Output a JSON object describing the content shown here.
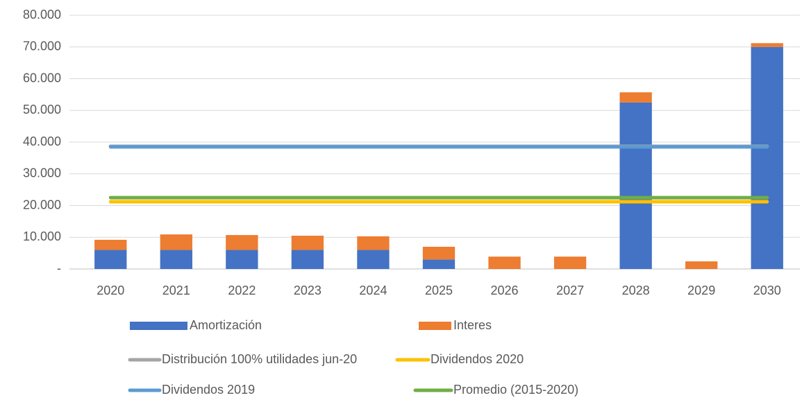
{
  "chart_data": {
    "type": "combo",
    "categories": [
      "2020",
      "2021",
      "2022",
      "2023",
      "2024",
      "2025",
      "2026",
      "2027",
      "2028",
      "2029",
      "2030"
    ],
    "series": [
      {
        "name": "Amortización",
        "type": "bar",
        "color": "#4472c4",
        "values": [
          6000,
          6000,
          6000,
          6000,
          6000,
          3000,
          0,
          0,
          52500,
          0,
          70000
        ]
      },
      {
        "name": "Interes",
        "type": "bar",
        "color": "#ed7d31",
        "values": [
          3200,
          4900,
          4700,
          4500,
          4300,
          4000,
          3900,
          3900,
          3200,
          2400,
          1200
        ]
      },
      {
        "name": "Distribución 100% utilidades jun-20",
        "type": "line",
        "color": "#a5a5a5",
        "values": [
          38700,
          38700,
          38700,
          38700,
          38700,
          38700,
          38700,
          38700,
          38700,
          38700,
          38700
        ]
      },
      {
        "name": "Dividendos 2020",
        "type": "line",
        "color": "#ffc000",
        "values": [
          21200,
          21200,
          21200,
          21200,
          21200,
          21200,
          21200,
          21200,
          21200,
          21200,
          21200
        ]
      },
      {
        "name": "Dividendos 2019",
        "type": "line",
        "color": "#5b9bd5",
        "values": [
          38500,
          38500,
          38500,
          38500,
          38500,
          38500,
          38500,
          38500,
          38500,
          38500,
          38500
        ]
      },
      {
        "name": "Promedio (2015-2020)",
        "type": "line",
        "color": "#70ad47",
        "values": [
          22500,
          22500,
          22500,
          22500,
          22500,
          22500,
          22500,
          22500,
          22500,
          22500,
          22500
        ]
      }
    ],
    "ylim": [
      0,
      80000
    ],
    "yticks": [
      {
        "value": 0,
        "label": "-"
      },
      {
        "value": 10000,
        "label": "10.000"
      },
      {
        "value": 20000,
        "label": "20.000"
      },
      {
        "value": 30000,
        "label": "30.000"
      },
      {
        "value": 40000,
        "label": "40.000"
      },
      {
        "value": 50000,
        "label": "50.000"
      },
      {
        "value": 60000,
        "label": "60.000"
      },
      {
        "value": 70000,
        "label": "70.000"
      },
      {
        "value": 80000,
        "label": "80.000"
      }
    ],
    "grid": true,
    "stacked": true,
    "legend": "bottom"
  }
}
